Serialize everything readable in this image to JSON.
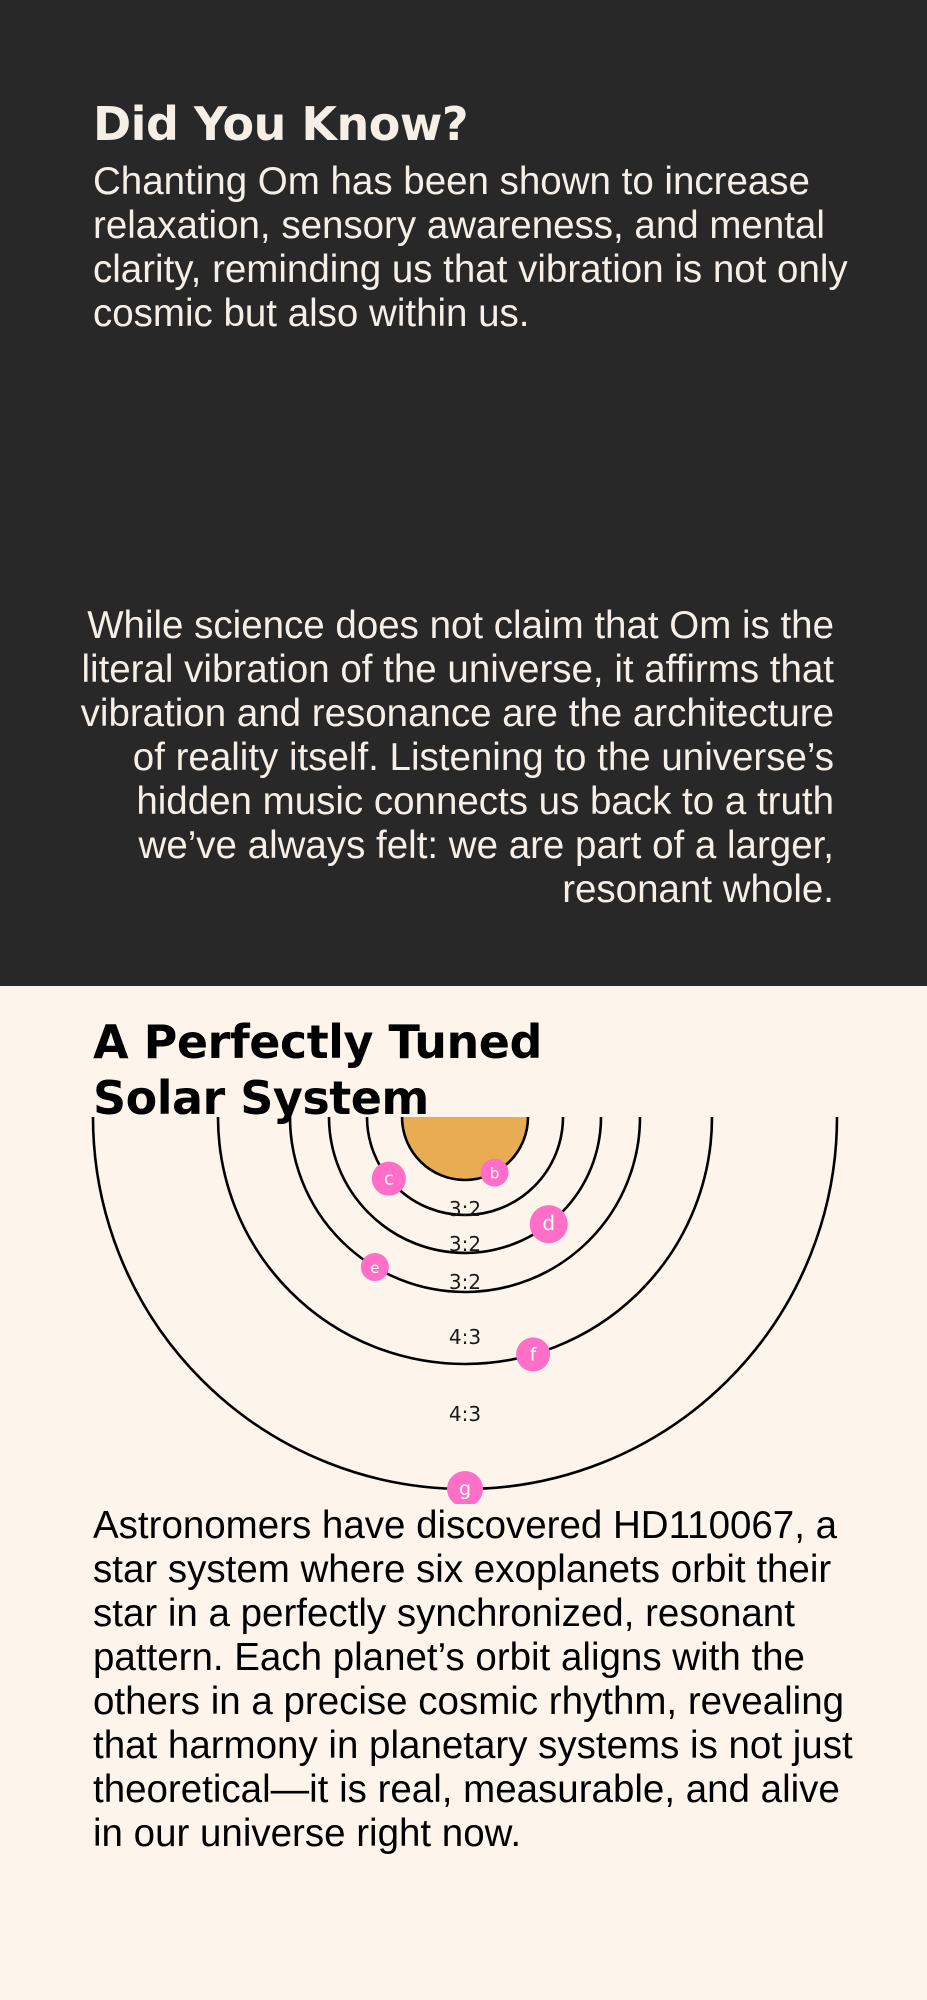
{
  "colors": {
    "accent_pink": "#ff6ec7",
    "dark_background": "#282828",
    "light_background": "#fdf4eb",
    "sun": "#e8ad52",
    "text_light": "#f5efe7",
    "text_dark": "#000000"
  },
  "did_you_know": {
    "title": "Did You Know?",
    "body": "Chanting Om has been shown to increase relaxation, sensory awareness, and mental clarity, reminding us that vibration is not only cosmic but also within us."
  },
  "science": {
    "body": "While science does not claim that Om is the literal vibration of the universe, it affirms that vibration and resonance are the architecture of reality itself. Listening to the universe’s hidden music connects us back to a truth we’ve always felt: we are part of a larger, resonant whole."
  },
  "solar_system": {
    "title": "A Perfectly Tuned Solar System",
    "planets": [
      "b",
      "c",
      "d",
      "e",
      "f",
      "g"
    ],
    "ratios": [
      "3:2",
      "3:2",
      "3:2",
      "4:3",
      "4:3"
    ],
    "body": "Astronomers have discovered HD110067, a star system where six exoplanets orbit their star in a perfectly synchronized, resonant pattern. Each planet’s orbit aligns with the others in a precise cosmic rhythm, revealing that harmony in planetary systems is not just theoretical—it is real, measurable, and alive in our universe right now."
  }
}
